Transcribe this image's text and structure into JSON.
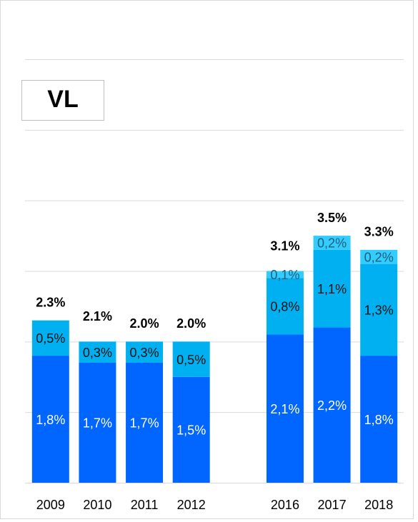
{
  "chart_data": {
    "type": "stacked_bar",
    "annotation": "VL",
    "categories": [
      "2009",
      "2010",
      "2011",
      "2012",
      null,
      "2016",
      "2017",
      "2018"
    ],
    "series": [
      {
        "color": "#0066ff",
        "label_color": "#ffffff",
        "values": [
          1.8,
          1.7,
          1.7,
          1.5,
          null,
          2.1,
          2.2,
          1.8
        ],
        "value_labels": [
          "1,8%",
          "1,7%",
          "1,7%",
          "1,5%",
          null,
          "2,1%",
          "2,2%",
          "1,8%"
        ]
      },
      {
        "color": "#00b0f0",
        "label_color": "#111111",
        "values": [
          0.5,
          0.3,
          0.3,
          0.5,
          null,
          0.8,
          1.1,
          1.3
        ],
        "value_labels": [
          "0,5%",
          "0,3%",
          "0,3%",
          "0,5%",
          null,
          "0,8%",
          "1,1%",
          "1,3%"
        ]
      },
      {
        "color": "#33ccff",
        "label_color": "#1f5f7a",
        "values": [
          null,
          null,
          null,
          null,
          null,
          0.1,
          0.2,
          0.2
        ],
        "value_labels": [
          null,
          null,
          null,
          null,
          null,
          "0,1%",
          "0,2%",
          "0,2%"
        ]
      }
    ],
    "totals": [
      2.3,
      2.1,
      2.0,
      2.0,
      null,
      3.1,
      3.5,
      3.3
    ],
    "total_labels": [
      "2.3%",
      "2.1%",
      "2.0%",
      "2.0%",
      null,
      "3.1%",
      "3.5%",
      "3.3%"
    ],
    "ylim": [
      0,
      6
    ],
    "yticks": [
      0,
      1,
      2,
      3,
      4,
      5,
      6
    ],
    "grid": true
  }
}
